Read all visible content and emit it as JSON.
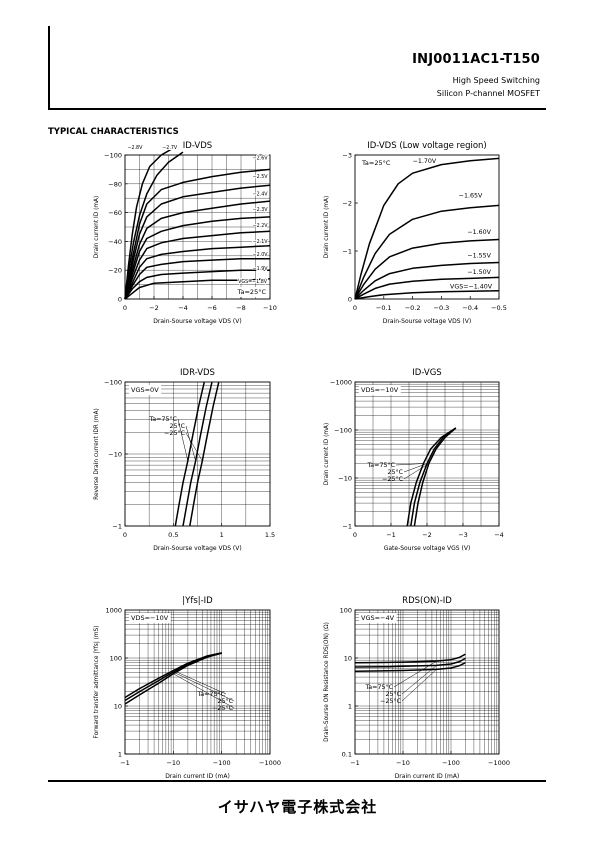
{
  "header": {
    "part_number": "INJ0011AC1-T150",
    "line1": "High Speed Switching",
    "line2": "Silicon  P-channel  MOSFET"
  },
  "section_title": "TYPICAL CHARACTERISTICS",
  "footer": {
    "maker": "イサハヤ電子株式会社"
  },
  "chart_data": [
    {
      "id": "c1",
      "type": "line",
      "title": "ID-VDS",
      "xlabel": "Drain-Sourse voltage VDS (V)",
      "ylabel": "Drain current ID (mA)",
      "xlim": [
        0,
        -10
      ],
      "ylim": [
        0,
        -100
      ],
      "xscale": "linear",
      "yscale": "linear",
      "xticks": [
        0,
        -2,
        -4,
        -6,
        -8,
        -10
      ],
      "yticks": [
        0,
        -20,
        -40,
        -60,
        -80,
        -100
      ],
      "grid": true,
      "series": [
        {
          "name": "-2.8V",
          "x": [
            0,
            -0.25,
            -0.5,
            -0.8,
            -1.2,
            -1.7,
            -2.5,
            -3.2
          ],
          "y": [
            0,
            -24,
            -45,
            -64,
            -80,
            -92,
            -100,
            -104
          ]
        },
        {
          "name": "-2.7V",
          "x": [
            0,
            -0.3,
            -0.6,
            -1,
            -1.5,
            -2.2,
            -3,
            -4
          ],
          "y": [
            0,
            -22,
            -40,
            -58,
            -73,
            -86,
            -95,
            -102
          ]
        },
        {
          "name": "-2.6V",
          "x": [
            0,
            -0.5,
            -1,
            -1.5,
            -2.5,
            -4,
            -6,
            -8,
            -10
          ],
          "y": [
            0,
            -28,
            -52,
            -66,
            -76,
            -81,
            -85,
            -88,
            -90
          ]
        },
        {
          "name": "-2.5V",
          "x": [
            0,
            -0.5,
            -1,
            -1.5,
            -2.5,
            -4,
            -6,
            -8,
            -10
          ],
          "y": [
            0,
            -24,
            -45,
            -57,
            -66,
            -71,
            -74,
            -77,
            -79
          ]
        },
        {
          "name": "-2.4V",
          "x": [
            0,
            -0.5,
            -1,
            -1.5,
            -2.5,
            -4,
            -6,
            -8,
            -10
          ],
          "y": [
            0,
            -20,
            -38,
            -49,
            -56,
            -60,
            -63,
            -66,
            -68
          ]
        },
        {
          "name": "-2.3V",
          "x": [
            0,
            -0.5,
            -1,
            -1.5,
            -2.5,
            -4,
            -6,
            -8,
            -10
          ],
          "y": [
            0,
            -17,
            -33,
            -42,
            -47,
            -51,
            -54,
            -56,
            -57
          ]
        },
        {
          "name": "-2.2V",
          "x": [
            0,
            -0.5,
            -1,
            -1.5,
            -2.5,
            -4,
            -6,
            -8,
            -10
          ],
          "y": [
            0,
            -14,
            -27,
            -35,
            -39,
            -42,
            -44,
            -46,
            -47
          ]
        },
        {
          "name": "-2.1V",
          "x": [
            0,
            -0.5,
            -1,
            -1.5,
            -2.5,
            -4,
            -6,
            -8,
            -10
          ],
          "y": [
            0,
            -11,
            -22,
            -28,
            -31,
            -33,
            -35,
            -36,
            -37
          ]
        },
        {
          "name": "-2.0V",
          "x": [
            0,
            -0.5,
            -1,
            -1.5,
            -2.5,
            -4,
            -6,
            -8,
            -10
          ],
          "y": [
            0,
            -9,
            -17,
            -22,
            -24,
            -26,
            -27,
            -28,
            -28
          ]
        },
        {
          "name": "-1.9V",
          "x": [
            0,
            -0.5,
            -1,
            -1.5,
            -2.5,
            -4,
            -6,
            -8,
            -10
          ],
          "y": [
            0,
            -7,
            -12,
            -15,
            -17,
            -18,
            -19,
            -20,
            -20
          ]
        },
        {
          "name": "VGS=-1.8V",
          "x": [
            0,
            -0.5,
            -1,
            -2,
            -4,
            -6,
            -8,
            -10
          ],
          "y": [
            0,
            -4,
            -8,
            -11,
            -12,
            -13,
            -13,
            -14
          ]
        }
      ],
      "annotations": [
        "Ta=25°C"
      ]
    },
    {
      "id": "c2",
      "type": "line",
      "title": "ID-VDS (Low voltage region)",
      "xlabel": "Drain-Sourse voltage VDS (V)",
      "ylabel": "Drain current ID (mA)",
      "xlim": [
        0,
        -0.5
      ],
      "ylim": [
        0,
        -3
      ],
      "xscale": "linear",
      "yscale": "linear",
      "xticks": [
        0,
        -0.1,
        -0.2,
        -0.3,
        -0.4,
        -0.5
      ],
      "yticks": [
        0,
        -1,
        -2,
        -3
      ],
      "grid": false,
      "series": [
        {
          "name": "-1.70V",
          "x": [
            0,
            -0.02,
            -0.05,
            -0.1,
            -0.15,
            -0.2,
            -0.3,
            -0.4,
            -0.5
          ],
          "y": [
            0,
            -0.5,
            -1.15,
            -1.95,
            -2.4,
            -2.62,
            -2.8,
            -2.88,
            -2.93
          ]
        },
        {
          "name": "-1.65V",
          "x": [
            0,
            -0.03,
            -0.07,
            -0.12,
            -0.2,
            -0.3,
            -0.4,
            -0.5
          ],
          "y": [
            0,
            -0.45,
            -0.95,
            -1.35,
            -1.66,
            -1.83,
            -1.9,
            -1.95
          ]
        },
        {
          "name": "-1.60V",
          "x": [
            0,
            -0.03,
            -0.07,
            -0.12,
            -0.2,
            -0.3,
            -0.4,
            -0.5
          ],
          "y": [
            0,
            -0.3,
            -0.62,
            -0.88,
            -1.06,
            -1.16,
            -1.21,
            -1.24
          ]
        },
        {
          "name": "-1.55V",
          "x": [
            0,
            -0.03,
            -0.07,
            -0.12,
            -0.2,
            -0.3,
            -0.4,
            -0.5
          ],
          "y": [
            0,
            -0.18,
            -0.38,
            -0.53,
            -0.64,
            -0.7,
            -0.74,
            -0.76
          ]
        },
        {
          "name": "-1.50V",
          "x": [
            0,
            -0.03,
            -0.07,
            -0.12,
            -0.2,
            -0.3,
            -0.4,
            -0.5
          ],
          "y": [
            0,
            -0.1,
            -0.22,
            -0.31,
            -0.37,
            -0.41,
            -0.43,
            -0.45
          ]
        },
        {
          "name": "VGS=-1.40V",
          "x": [
            0,
            -0.05,
            -0.1,
            -0.2,
            -0.3,
            -0.4,
            -0.5
          ],
          "y": [
            0,
            -0.05,
            -0.09,
            -0.13,
            -0.15,
            -0.16,
            -0.17
          ]
        }
      ],
      "annotations": [
        "Ta=25°C"
      ]
    },
    {
      "id": "c3",
      "type": "line",
      "title": "IDR-VDS",
      "xlabel": "Drain-Sourse voltage VDS (V)",
      "ylabel": "Reverse Drain current IDR (mA)",
      "xlim": [
        0,
        1.5
      ],
      "ylim": [
        -1,
        -100
      ],
      "xscale": "linear",
      "yscale": "log",
      "xticks": [
        0,
        0.5,
        1,
        1.5
      ],
      "yticks": [
        -1,
        -10,
        -100
      ],
      "grid": true,
      "series": [
        {
          "name": "Ta=75°C",
          "x": [
            0.52,
            0.56,
            0.6,
            0.65,
            0.7,
            0.76,
            0.82
          ],
          "y": [
            -1,
            -2,
            -4,
            -8,
            -18,
            -45,
            -100
          ]
        },
        {
          "name": "25°C",
          "x": [
            0.6,
            0.64,
            0.68,
            0.73,
            0.78,
            0.84,
            0.9
          ],
          "y": [
            -1,
            -2,
            -4,
            -8,
            -18,
            -45,
            -100
          ]
        },
        {
          "name": "-25°C",
          "x": [
            0.67,
            0.71,
            0.75,
            0.8,
            0.85,
            0.91,
            0.97
          ],
          "y": [
            -1,
            -2,
            -4,
            -8,
            -18,
            -45,
            -100
          ]
        }
      ],
      "annotations": [
        "VGS=0V"
      ]
    },
    {
      "id": "c4",
      "type": "line",
      "title": "ID-VGS",
      "xlabel": "Gate-Sourse voltage VGS (V)",
      "ylabel": "Drain current ID (mA)",
      "xlim": [
        0,
        -4
      ],
      "ylim": [
        -1,
        -1000
      ],
      "xscale": "linear",
      "yscale": "log",
      "xticks": [
        0,
        -1,
        -2,
        -3,
        -4
      ],
      "yticks": [
        -1,
        -10,
        -100,
        -1000
      ],
      "grid": true,
      "series": [
        {
          "name": "Ta=75°C",
          "x": [
            -1.45,
            -1.55,
            -1.7,
            -1.9,
            -2.1,
            -2.4,
            -2.8
          ],
          "y": [
            -1,
            -3,
            -8,
            -20,
            -40,
            -70,
            -110
          ]
        },
        {
          "name": "25°C",
          "x": [
            -1.55,
            -1.65,
            -1.8,
            -2.0,
            -2.2,
            -2.45,
            -2.8
          ],
          "y": [
            -1,
            -3,
            -8,
            -20,
            -40,
            -70,
            -110
          ]
        },
        {
          "name": "-25°C",
          "x": [
            -1.65,
            -1.75,
            -1.88,
            -2.05,
            -2.25,
            -2.5,
            -2.8
          ],
          "y": [
            -1,
            -3,
            -8,
            -20,
            -40,
            -70,
            -110
          ]
        }
      ],
      "annotations": [
        "VDS=-10V"
      ]
    },
    {
      "id": "c5",
      "type": "line",
      "title": "|Yfs|-ID",
      "xlabel": "Drain current ID (mA)",
      "ylabel": "Forward transfer admittance |Yfs| (mS)",
      "xlim": [
        -1,
        -1000
      ],
      "ylim": [
        1,
        1000
      ],
      "xscale": "log",
      "yscale": "log",
      "xticks": [
        -1,
        -10,
        -100,
        -1000
      ],
      "yticks": [
        1,
        10,
        100,
        1000
      ],
      "grid": true,
      "series": [
        {
          "name": "Ta=75°C",
          "x": [
            -1,
            -2,
            -5,
            -10,
            -20,
            -50,
            -100
          ],
          "y": [
            15,
            23,
            38,
            55,
            78,
            110,
            128
          ]
        },
        {
          "name": "25°C",
          "x": [
            -1,
            -2,
            -5,
            -10,
            -20,
            -50,
            -100
          ],
          "y": [
            13,
            20,
            34,
            51,
            74,
            107,
            127
          ]
        },
        {
          "name": "-25°C",
          "x": [
            -1,
            -2,
            -5,
            -10,
            -20,
            -50,
            -100
          ],
          "y": [
            11,
            17,
            30,
            47,
            70,
            104,
            126
          ]
        }
      ],
      "annotations": [
        "VDS=-10V"
      ]
    },
    {
      "id": "c6",
      "type": "line",
      "title": "RDS(ON)-ID",
      "xlabel": "Drain current ID (mA)",
      "ylabel": "Drain-Sourse ON Resistance RDS(ON) (Ω)",
      "xlim": [
        -1,
        -1000
      ],
      "ylim": [
        0.1,
        100
      ],
      "xscale": "log",
      "yscale": "log",
      "xticks": [
        -1,
        -10,
        -100,
        -1000
      ],
      "yticks": [
        0.1,
        1,
        10,
        100
      ],
      "grid": true,
      "series": [
        {
          "name": "Ta=75°C",
          "x": [
            -1,
            -5,
            -10,
            -50,
            -100,
            -150,
            -200
          ],
          "y": [
            8,
            8.1,
            8.2,
            8.6,
            9.2,
            10.3,
            12
          ]
        },
        {
          "name": "25°C",
          "x": [
            -1,
            -5,
            -10,
            -50,
            -100,
            -150,
            -200
          ],
          "y": [
            6.5,
            6.6,
            6.7,
            7,
            7.5,
            8.4,
            9.8
          ]
        },
        {
          "name": "-25°C",
          "x": [
            -1,
            -5,
            -10,
            -50,
            -100,
            -150,
            -200
          ],
          "y": [
            5.3,
            5.4,
            5.5,
            5.8,
            6.2,
            6.9,
            8
          ]
        }
      ],
      "annotations": [
        "VGS=-4V"
      ]
    }
  ]
}
